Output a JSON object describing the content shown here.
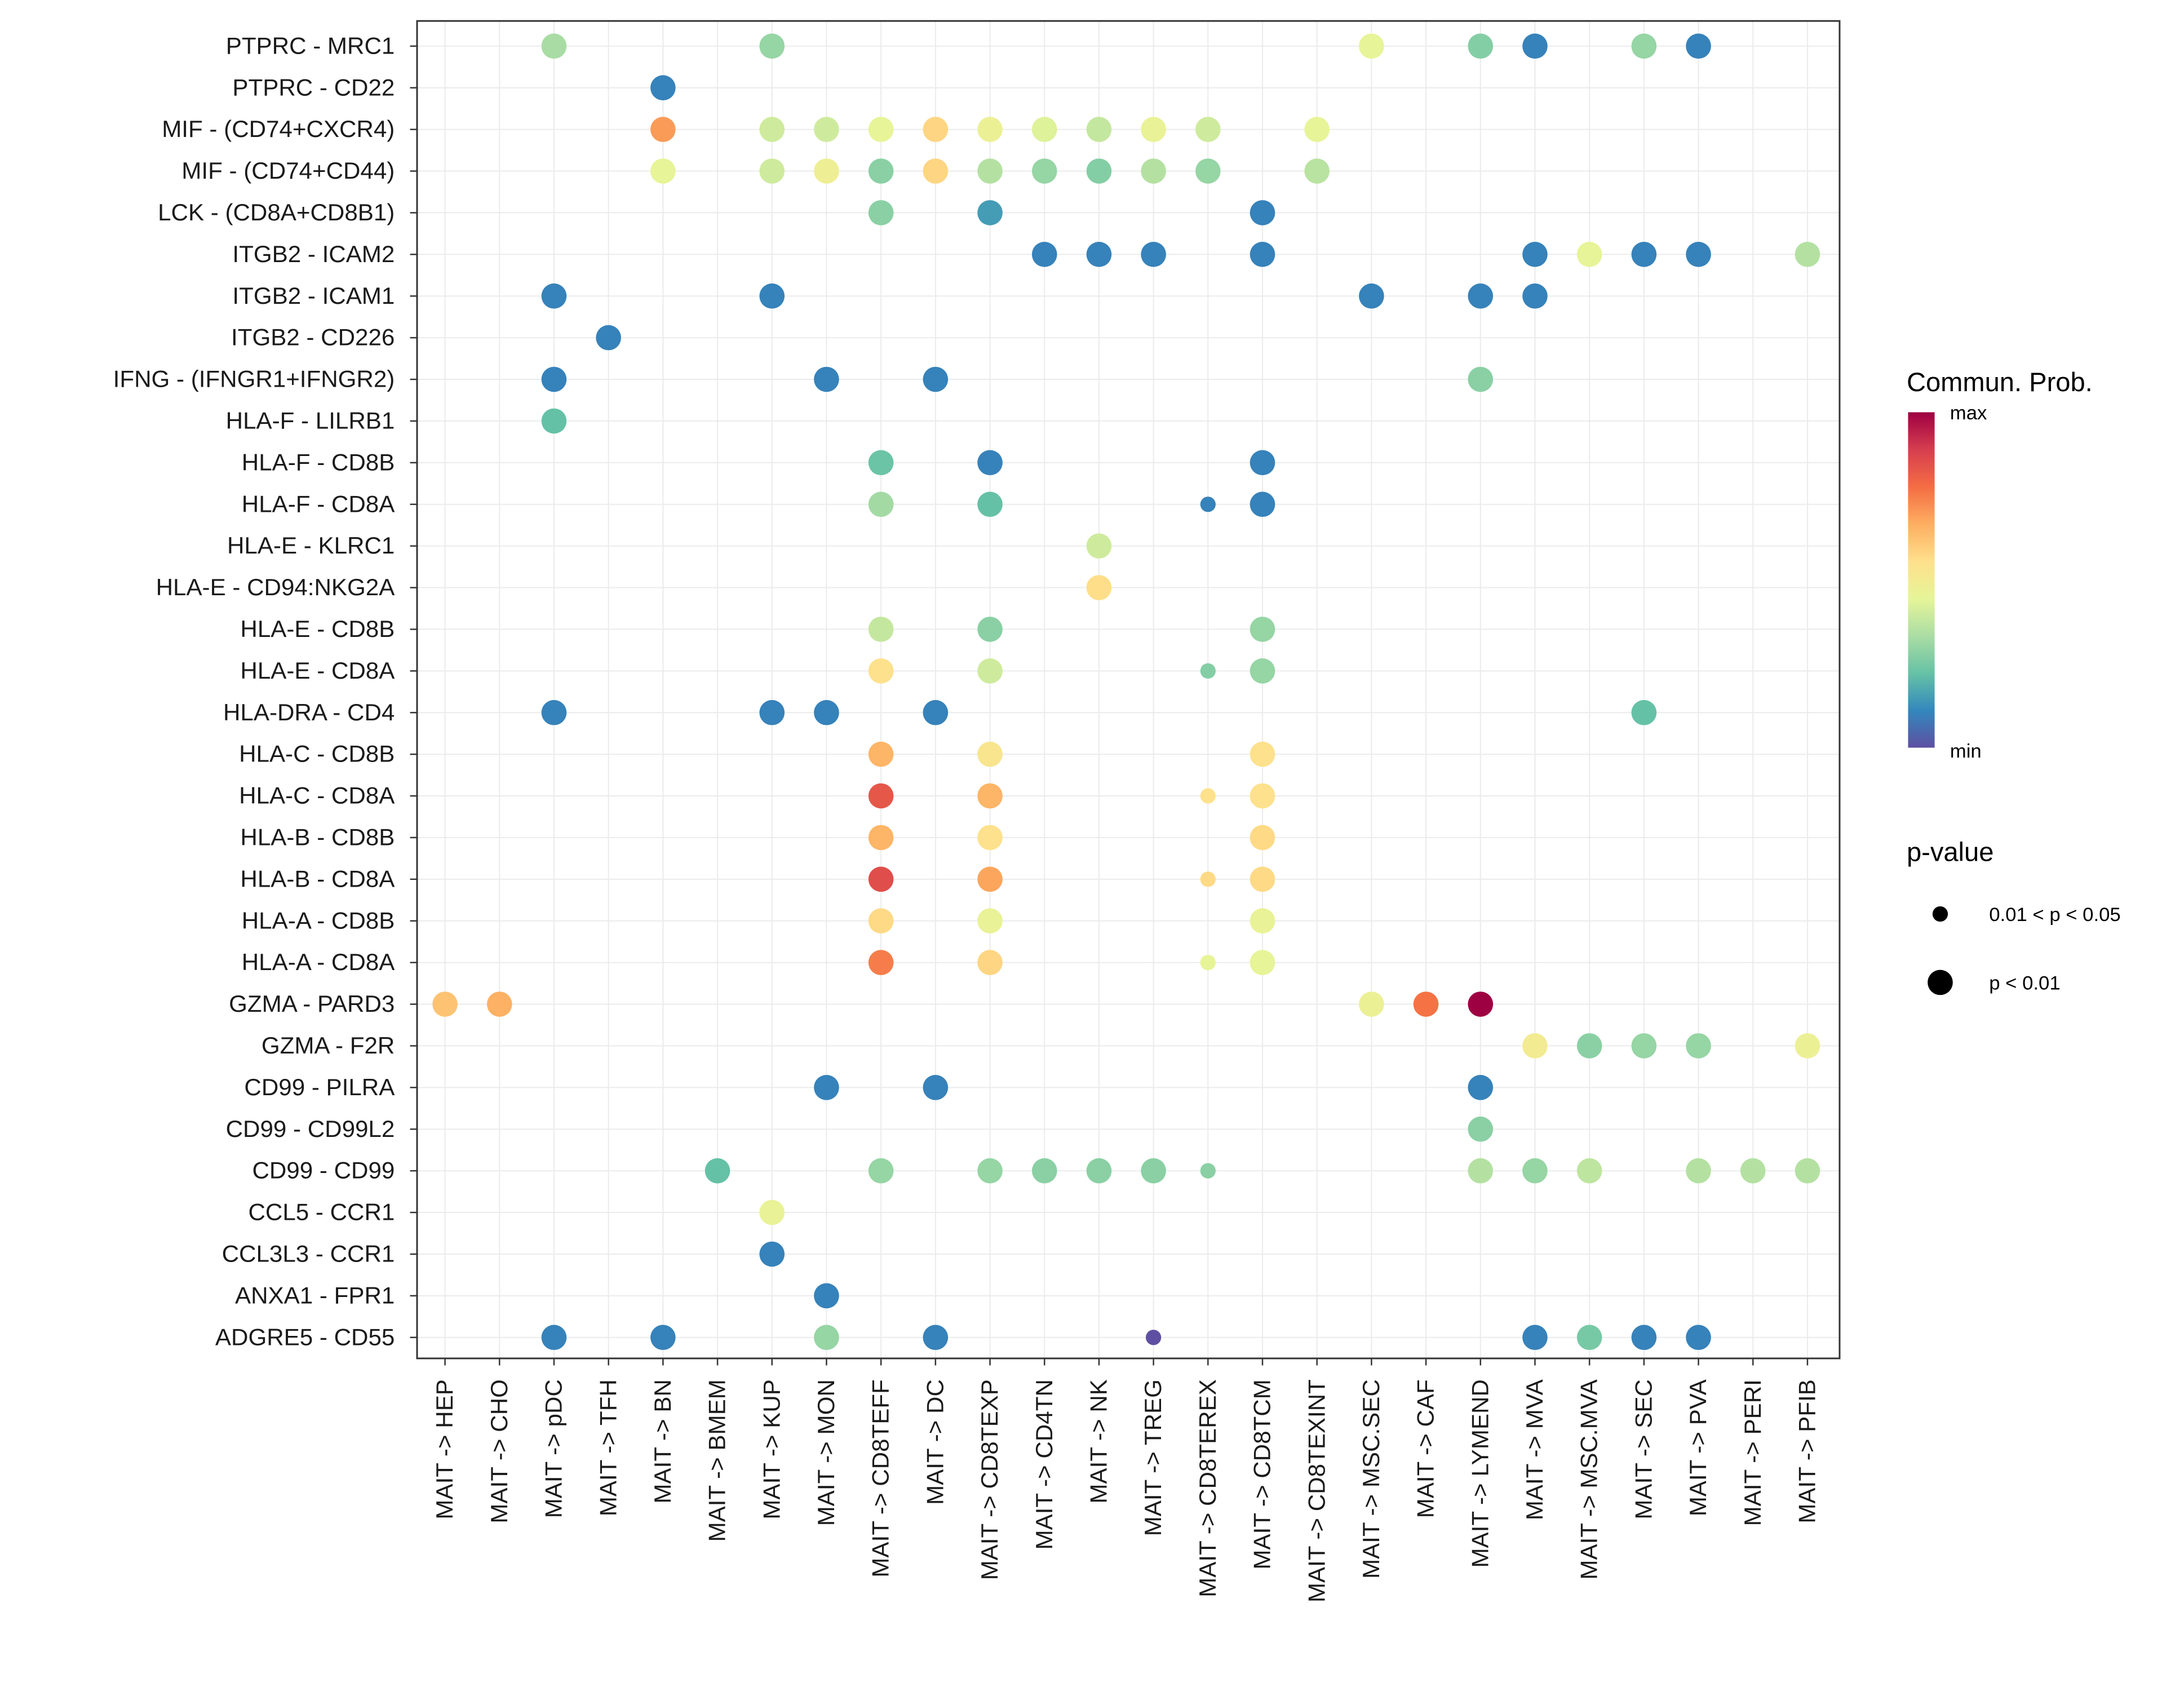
{
  "chart_data": {
    "type": "scatter",
    "title": "",
    "xlabel": "",
    "ylabel": "",
    "x_categories": [
      "MAIT -> HEP",
      "MAIT -> CHO",
      "MAIT -> pDC",
      "MAIT -> TFH",
      "MAIT -> BN",
      "MAIT -> BMEM",
      "MAIT -> KUP",
      "MAIT -> MON",
      "MAIT -> CD8TEFF",
      "MAIT -> DC",
      "MAIT -> CD8TEXP",
      "MAIT -> CD4TN",
      "MAIT -> NK",
      "MAIT -> TREG",
      "MAIT -> CD8TEREX",
      "MAIT -> CD8TCM",
      "MAIT -> CD8TEXINT",
      "MAIT -> MSC.SEC",
      "MAIT -> CAF",
      "MAIT -> LYMEND",
      "MAIT -> MVA",
      "MAIT -> MSC.MVA",
      "MAIT -> SEC",
      "MAIT -> PVA",
      "MAIT -> PERI",
      "MAIT -> PFIB"
    ],
    "y_categories_top_to_bottom": [
      "PTPRC - MRC1",
      "PTPRC - CD22",
      "MIF - (CD74+CXCR4)",
      "MIF - (CD74+CD44)",
      "LCK - (CD8A+CD8B1)",
      "ITGB2 - ICAM2",
      "ITGB2 - ICAM1",
      "ITGB2 - CD226",
      "IFNG - (IFNGR1+IFNGR2)",
      "HLA-F - LILRB1",
      "HLA-F - CD8B",
      "HLA-F - CD8A",
      "HLA-E - KLRC1",
      "HLA-E - CD94:NKG2A",
      "HLA-E - CD8B",
      "HLA-E - CD8A",
      "HLA-DRA - CD4",
      "HLA-C - CD8B",
      "HLA-C - CD8A",
      "HLA-B - CD8B",
      "HLA-B - CD8A",
      "HLA-A - CD8B",
      "HLA-A - CD8A",
      "GZMA - PARD3",
      "GZMA - F2R",
      "CD99 - PILRA",
      "CD99 - CD99L2",
      "CD99 - CD99",
      "CCL5 - CCR1",
      "CCL3L3 - CCR1",
      "ANXA1 - FPR1",
      "ADGRE5 - CD55"
    ],
    "point_format": "[x_short, commun_prob_relative_0_to_1, pvalue_class (1 = p < 0.01, 0 = 0.01 < p < 0.05)]",
    "points": {
      "PTPRC - MRC1": [
        [
          "pDC",
          0.33,
          1
        ],
        [
          "KUP",
          0.3,
          1
        ],
        [
          "MSC.SEC",
          0.45,
          1
        ],
        [
          "LYMEND",
          0.27,
          1
        ],
        [
          "MVA",
          0.1,
          1
        ],
        [
          "SEC",
          0.3,
          1
        ],
        [
          "PVA",
          0.1,
          1
        ]
      ],
      "PTPRC - CD22": [
        [
          "BN",
          0.1,
          1
        ]
      ],
      "MIF - (CD74+CXCR4)": [
        [
          "BN",
          0.7,
          1
        ],
        [
          "KUP",
          0.4,
          1
        ],
        [
          "MON",
          0.4,
          1
        ],
        [
          "CD8TEFF",
          0.45,
          1
        ],
        [
          "DC",
          0.58,
          1
        ],
        [
          "CD8TEXP",
          0.47,
          1
        ],
        [
          "CD4TN",
          0.43,
          1
        ],
        [
          "NK",
          0.38,
          1
        ],
        [
          "TREG",
          0.46,
          1
        ],
        [
          "CD8TEREX",
          0.4,
          1
        ],
        [
          "CD8TEXINT",
          0.45,
          1
        ]
      ],
      "MIF - (CD74+CD44)": [
        [
          "BN",
          0.45,
          1
        ],
        [
          "KUP",
          0.4,
          1
        ],
        [
          "MON",
          0.48,
          1
        ],
        [
          "CD8TEFF",
          0.28,
          1
        ],
        [
          "DC",
          0.58,
          1
        ],
        [
          "CD8TEXP",
          0.35,
          1
        ],
        [
          "CD4TN",
          0.3,
          1
        ],
        [
          "NK",
          0.27,
          1
        ],
        [
          "TREG",
          0.35,
          1
        ],
        [
          "CD8TEREX",
          0.3,
          1
        ],
        [
          "CD8TEXINT",
          0.36,
          1
        ]
      ],
      "LCK - (CD8A+CD8B1)": [
        [
          "CD8TEFF",
          0.28,
          1
        ],
        [
          "CD8TEXP",
          0.15,
          1
        ],
        [
          "CD8TCM",
          0.1,
          1
        ]
      ],
      "ITGB2 - ICAM2": [
        [
          "CD4TN",
          0.1,
          1
        ],
        [
          "NK",
          0.1,
          1
        ],
        [
          "TREG",
          0.1,
          1
        ],
        [
          "CD8TCM",
          0.1,
          1
        ],
        [
          "MVA",
          0.1,
          1
        ],
        [
          "MSC.MVA",
          0.45,
          1
        ],
        [
          "SEC",
          0.1,
          1
        ],
        [
          "PVA",
          0.1,
          1
        ],
        [
          "PFIB",
          0.35,
          1
        ]
      ],
      "ITGB2 - ICAM1": [
        [
          "pDC",
          0.1,
          1
        ],
        [
          "KUP",
          0.1,
          1
        ],
        [
          "MSC.SEC",
          0.1,
          1
        ],
        [
          "LYMEND",
          0.1,
          1
        ],
        [
          "MVA",
          0.1,
          1
        ]
      ],
      "ITGB2 - CD226": [
        [
          "TFH",
          0.1,
          1
        ]
      ],
      "IFNG - (IFNGR1+IFNGR2)": [
        [
          "pDC",
          0.1,
          1
        ],
        [
          "MON",
          0.1,
          1
        ],
        [
          "DC",
          0.1,
          1
        ],
        [
          "LYMEND",
          0.28,
          1
        ]
      ],
      "HLA-F - LILRB1": [
        [
          "pDC",
          0.22,
          1
        ]
      ],
      "HLA-F - CD8B": [
        [
          "CD8TEFF",
          0.23,
          1
        ],
        [
          "CD8TEXP",
          0.1,
          1
        ],
        [
          "CD8TCM",
          0.1,
          1
        ]
      ],
      "HLA-F - CD8A": [
        [
          "CD8TEFF",
          0.32,
          1
        ],
        [
          "CD8TEXP",
          0.22,
          1
        ],
        [
          "CD8TEREX",
          0.1,
          0
        ],
        [
          "CD8TCM",
          0.1,
          1
        ]
      ],
      "HLA-E - KLRC1": [
        [
          "NK",
          0.4,
          1
        ]
      ],
      "HLA-E - CD94:NKG2A": [
        [
          "NK",
          0.56,
          1
        ]
      ],
      "HLA-E - CD8B": [
        [
          "CD8TEFF",
          0.38,
          1
        ],
        [
          "CD8TEXP",
          0.28,
          1
        ],
        [
          "CD8TCM",
          0.3,
          1
        ]
      ],
      "HLA-E - CD8A": [
        [
          "CD8TEFF",
          0.55,
          1
        ],
        [
          "CD8TEXP",
          0.4,
          1
        ],
        [
          "CD8TEREX",
          0.27,
          0
        ],
        [
          "CD8TCM",
          0.3,
          1
        ]
      ],
      "HLA-DRA - CD4": [
        [
          "pDC",
          0.1,
          1
        ],
        [
          "KUP",
          0.1,
          1
        ],
        [
          "MON",
          0.1,
          1
        ],
        [
          "DC",
          0.1,
          1
        ],
        [
          "SEC",
          0.22,
          1
        ]
      ],
      "HLA-C - CD8B": [
        [
          "CD8TEFF",
          0.65,
          1
        ],
        [
          "CD8TEXP",
          0.53,
          1
        ],
        [
          "CD8TCM",
          0.55,
          1
        ]
      ],
      "HLA-C - CD8A": [
        [
          "CD8TEFF",
          0.83,
          1
        ],
        [
          "CD8TEXP",
          0.65,
          1
        ],
        [
          "CD8TEREX",
          0.55,
          0
        ],
        [
          "CD8TCM",
          0.55,
          1
        ]
      ],
      "HLA-B - CD8B": [
        [
          "CD8TEFF",
          0.65,
          1
        ],
        [
          "CD8TEXP",
          0.55,
          1
        ],
        [
          "CD8TCM",
          0.57,
          1
        ]
      ],
      "HLA-B - CD8A": [
        [
          "CD8TEFF",
          0.85,
          1
        ],
        [
          "CD8TEXP",
          0.68,
          1
        ],
        [
          "CD8TEREX",
          0.57,
          0
        ],
        [
          "CD8TCM",
          0.57,
          1
        ]
      ],
      "HLA-A - CD8B": [
        [
          "CD8TEFF",
          0.57,
          1
        ],
        [
          "CD8TEXP",
          0.46,
          1
        ],
        [
          "CD8TCM",
          0.46,
          1
        ]
      ],
      "HLA-A - CD8A": [
        [
          "CD8TEFF",
          0.75,
          1
        ],
        [
          "CD8TEXP",
          0.58,
          1
        ],
        [
          "CD8TEREX",
          0.45,
          0
        ],
        [
          "CD8TCM",
          0.45,
          1
        ]
      ],
      "GZMA - PARD3": [
        [
          "HEP",
          0.62,
          1
        ],
        [
          "CHO",
          0.66,
          1
        ],
        [
          "MSC.SEC",
          0.47,
          1
        ],
        [
          "CAF",
          0.77,
          1
        ],
        [
          "LYMEND",
          1.0,
          1
        ]
      ],
      "GZMA - F2R": [
        [
          "MVA",
          0.5,
          1
        ],
        [
          "MSC.MVA",
          0.28,
          1
        ],
        [
          "SEC",
          0.3,
          1
        ],
        [
          "PVA",
          0.3,
          1
        ],
        [
          "PFIB",
          0.47,
          1
        ]
      ],
      "CD99 - PILRA": [
        [
          "MON",
          0.1,
          1
        ],
        [
          "DC",
          0.1,
          1
        ],
        [
          "LYMEND",
          0.1,
          1
        ]
      ],
      "CD99 - CD99L2": [
        [
          "LYMEND",
          0.28,
          1
        ]
      ],
      "CD99 - CD99": [
        [
          "BMEM",
          0.22,
          1
        ],
        [
          "CD8TEFF",
          0.3,
          1
        ],
        [
          "CD8TEXP",
          0.3,
          1
        ],
        [
          "CD4TN",
          0.28,
          1
        ],
        [
          "NK",
          0.28,
          1
        ],
        [
          "TREG",
          0.28,
          1
        ],
        [
          "CD8TEREX",
          0.28,
          0
        ],
        [
          "LYMEND",
          0.35,
          1
        ],
        [
          "MVA",
          0.3,
          1
        ],
        [
          "MSC.MVA",
          0.37,
          1
        ],
        [
          "PVA",
          0.35,
          1
        ],
        [
          "PERI",
          0.35,
          1
        ],
        [
          "PFIB",
          0.35,
          1
        ]
      ],
      "CCL5 - CCR1": [
        [
          "KUP",
          0.46,
          1
        ]
      ],
      "CCL3L3 - CCR1": [
        [
          "KUP",
          0.1,
          1
        ]
      ],
      "ANXA1 - FPR1": [
        [
          "MON",
          0.1,
          1
        ]
      ],
      "ADGRE5 - CD55": [
        [
          "pDC",
          0.1,
          1
        ],
        [
          "BN",
          0.1,
          1
        ],
        [
          "MON",
          0.3,
          1
        ],
        [
          "DC",
          0.1,
          1
        ],
        [
          "TREG",
          0.0,
          0
        ],
        [
          "MVA",
          0.1,
          1
        ],
        [
          "MSC.MVA",
          0.25,
          1
        ],
        [
          "SEC",
          0.1,
          1
        ],
        [
          "PVA",
          0.1,
          1
        ]
      ]
    },
    "grid": true,
    "legend": {
      "position": "right",
      "color_title": "Commun. Prob.",
      "color_max_label": "max",
      "color_min_label": "min",
      "colors_min_to_max": [
        "#5E4FA2",
        "#3288BD",
        "#66C2A5",
        "#ABDDA4",
        "#E6F598",
        "#FEE08B",
        "#FDAE61",
        "#F46D43",
        "#D53E4F",
        "#9E0142"
      ],
      "size_title": "p-value",
      "size_labels": [
        "0.01 < p < 0.05",
        "p < 0.01"
      ]
    }
  }
}
